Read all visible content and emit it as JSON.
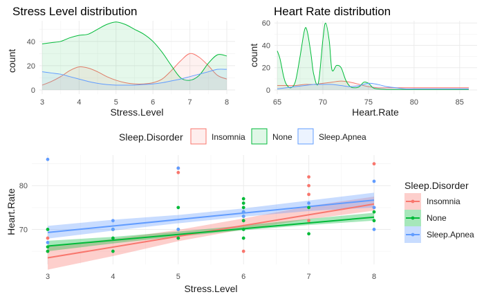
{
  "colors": {
    "Insomnia": "#F8766D",
    "None": "#00BA38",
    "Sleep.Apnea": "#619CFF"
  },
  "chart_data": [
    {
      "type": "area",
      "title": "Stress Level distribution",
      "xlabel": "Stress.Level",
      "ylabel": "count",
      "xlim": [
        3,
        8
      ],
      "ylim": [
        0,
        57
      ],
      "xticks": [
        3,
        4,
        5,
        6,
        7,
        8
      ],
      "yticks": [
        0,
        20,
        40
      ],
      "series": [
        {
          "name": "Insomnia",
          "x": [
            3,
            3.25,
            3.5,
            3.75,
            4,
            4.25,
            4.5,
            4.75,
            5,
            5.25,
            5.5,
            5.75,
            6,
            6.25,
            6.5,
            6.75,
            7,
            7.25,
            7.5,
            7.75,
            8
          ],
          "values": [
            4,
            7,
            11,
            16,
            19,
            18,
            15,
            11,
            8,
            6,
            5,
            5,
            6,
            9,
            16,
            24,
            30,
            27,
            20,
            12,
            9
          ]
        },
        {
          "name": "None",
          "x": [
            3,
            3.25,
            3.5,
            3.75,
            4,
            4.25,
            4.5,
            4.75,
            5,
            5.25,
            5.5,
            5.75,
            6,
            6.25,
            6.5,
            6.75,
            7,
            7.25,
            7.5,
            7.75,
            8
          ],
          "values": [
            38,
            39,
            40,
            43,
            45,
            46,
            50,
            54,
            56,
            54,
            50,
            46,
            40,
            31,
            20,
            10,
            8,
            12,
            22,
            29,
            28
          ]
        },
        {
          "name": "Sleep.Apnea",
          "x": [
            3,
            3.25,
            3.5,
            3.75,
            4,
            4.25,
            4.5,
            4.75,
            5,
            5.25,
            5.5,
            5.75,
            6,
            6.25,
            6.5,
            6.75,
            7,
            7.25,
            7.5,
            7.75,
            8
          ],
          "values": [
            15,
            14,
            13,
            11,
            9,
            7,
            5.5,
            4.5,
            4,
            4,
            4,
            4.5,
            5,
            6,
            7.5,
            9,
            11,
            13,
            15,
            17,
            17
          ]
        }
      ]
    },
    {
      "type": "area",
      "title": "Heart Rate distribution",
      "xlabel": "Heart.Rate",
      "ylabel": "count",
      "xlim": [
        65,
        86
      ],
      "ylim": [
        0,
        62
      ],
      "xticks": [
        65,
        70,
        75,
        80,
        85
      ],
      "yticks": [
        0,
        20,
        40,
        60
      ],
      "series": [
        {
          "name": "Insomnia",
          "x": [
            65,
            66,
            67,
            68,
            69,
            70,
            71,
            72,
            73,
            74,
            75,
            76,
            77,
            78,
            79,
            80,
            81,
            82,
            83,
            84,
            85,
            86
          ],
          "values": [
            4,
            4,
            4,
            5,
            5,
            6,
            7,
            8,
            7,
            5,
            3,
            2,
            2,
            2,
            2,
            2,
            2,
            2,
            2,
            2,
            2,
            2
          ]
        },
        {
          "name": "None",
          "x": [
            65,
            65.3,
            65.7,
            66,
            66.5,
            67,
            67.5,
            68,
            68.3,
            68.7,
            69,
            69.5,
            70,
            70.3,
            70.7,
            71,
            71.5,
            72,
            72.5,
            73,
            73.5,
            74,
            74.5,
            75,
            75.5,
            76,
            77,
            78,
            80,
            82,
            84,
            86
          ],
          "values": [
            35,
            28,
            12,
            5,
            2,
            8,
            30,
            54,
            52,
            32,
            14,
            6,
            45,
            60,
            44,
            18,
            22,
            20,
            9,
            3,
            2,
            3,
            7,
            6,
            2,
            1,
            0.5,
            0.5,
            0.5,
            0.5,
            0.5,
            0.5
          ]
        },
        {
          "name": "Sleep.Apnea",
          "x": [
            65,
            66,
            67,
            68,
            69,
            70,
            71,
            72,
            73,
            74,
            75,
            76,
            77,
            78,
            79,
            80,
            81,
            82,
            83,
            84,
            85,
            86
          ],
          "values": [
            1,
            2,
            3,
            4,
            5,
            5,
            5,
            4,
            3,
            4,
            6,
            5,
            3,
            2,
            1,
            1,
            1,
            1,
            1,
            1,
            1,
            1
          ]
        }
      ]
    },
    {
      "type": "scatter",
      "title": "",
      "xlabel": "Stress.Level",
      "ylabel": "Heart.Rate",
      "xlim": [
        3,
        8
      ],
      "ylim": [
        62,
        87
      ],
      "xticks": [
        3,
        4,
        5,
        6,
        7,
        8
      ],
      "yticks": [
        70,
        80
      ],
      "legend_title": "Sleep.Disorder",
      "legend_position": "right",
      "series": [
        {
          "name": "Insomnia",
          "points": [
            [
              3,
              68
            ],
            [
              3,
              65
            ],
            [
              5,
              83
            ],
            [
              5,
              84
            ],
            [
              5,
              68
            ],
            [
              6,
              65
            ],
            [
              6,
              72
            ],
            [
              7,
              78
            ],
            [
              7,
              80
            ],
            [
              7,
              82
            ],
            [
              7,
              72
            ],
            [
              8,
              85
            ],
            [
              8,
              75
            ]
          ],
          "fit": [
            [
              3,
              63.5
            ],
            [
              8,
              75.8
            ]
          ],
          "ci": [
            [
              3,
              60.8,
              66.2
            ],
            [
              4,
              63.9,
              67.8
            ],
            [
              5,
              67.3,
              69.9
            ],
            [
              6,
              70.0,
              72.5
            ],
            [
              7,
              72.3,
              75.3
            ],
            [
              8,
              74.3,
              77.5
            ]
          ]
        },
        {
          "name": "None",
          "points": [
            [
              3,
              70
            ],
            [
              3,
              66
            ],
            [
              3,
              65
            ],
            [
              4,
              70
            ],
            [
              4,
              65
            ],
            [
              4,
              68
            ],
            [
              5,
              75
            ],
            [
              5,
              70
            ],
            [
              5,
              68
            ],
            [
              6,
              77
            ],
            [
              6,
              76
            ],
            [
              6,
              75
            ],
            [
              6,
              74
            ],
            [
              6,
              73
            ],
            [
              6,
              72
            ],
            [
              6,
              70
            ],
            [
              6,
              68
            ],
            [
              7,
              75
            ],
            [
              7,
              69
            ],
            [
              8,
              74
            ],
            [
              8,
              72
            ]
          ],
          "fit": [
            [
              3,
              66.2
            ],
            [
              8,
              72.8
            ]
          ],
          "ci": [
            [
              3,
              65.0,
              67.4
            ],
            [
              4,
              66.8,
              68.3
            ],
            [
              5,
              68.4,
              69.5
            ],
            [
              6,
              69.8,
              70.9
            ],
            [
              7,
              71.0,
              72.4
            ],
            [
              8,
              72.0,
              73.8
            ]
          ]
        },
        {
          "name": "Sleep.Apnea",
          "points": [
            [
              3,
              86
            ],
            [
              3,
              67
            ],
            [
              4,
              72
            ],
            [
              4,
              70
            ],
            [
              5,
              84
            ],
            [
              5,
              70
            ],
            [
              6,
              74
            ],
            [
              6,
              73
            ],
            [
              7,
              76
            ],
            [
              8,
              81
            ],
            [
              8,
              75
            ],
            [
              8,
              70
            ]
          ],
          "fit": [
            [
              3,
              69.3
            ],
            [
              8,
              76.7
            ]
          ],
          "ci": [
            [
              3,
              67.9,
              70.8
            ],
            [
              4,
              69.7,
              72.2
            ],
            [
              5,
              71.4,
              73.3
            ],
            [
              6,
              72.9,
              74.8
            ],
            [
              7,
              74.2,
              76.6
            ],
            [
              8,
              75.0,
              78.4
            ]
          ]
        }
      ]
    }
  ],
  "top_legend": {
    "title": "Sleep.Disorder",
    "items": [
      "Insomnia",
      "None",
      "Sleep.Apnea"
    ]
  }
}
